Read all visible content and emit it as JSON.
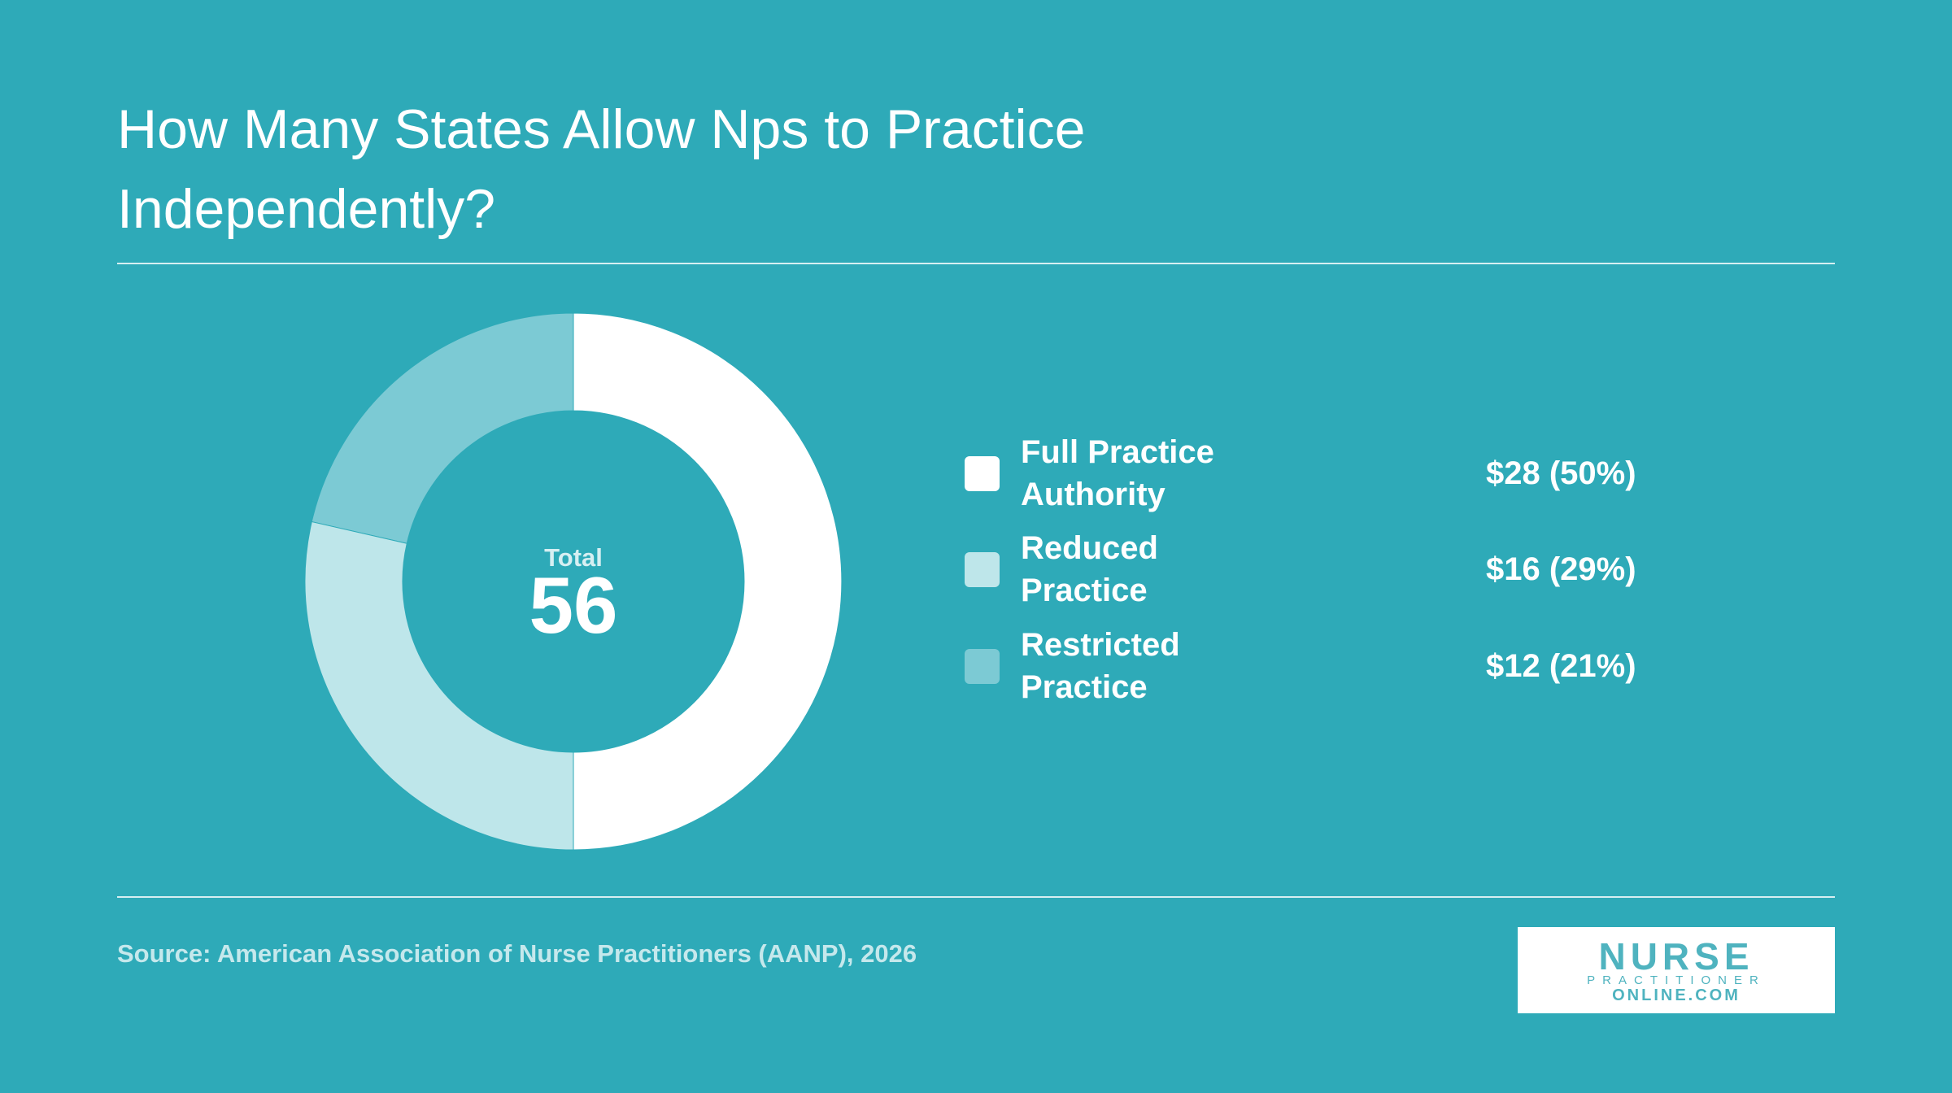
{
  "chart_data": {
    "type": "donut",
    "title": "How Many States Allow Nps to Practice Independently?",
    "categories": [
      "Full Practice Authority",
      "Reduced Practice",
      "Restricted Practice"
    ],
    "values": [
      28,
      16,
      12
    ],
    "value_labels": [
      "$28 (50%)",
      "$16 (29%)",
      "$12 (21%)"
    ],
    "colors": [
      "#ffffff",
      "#bee6ea",
      "#7ccad4"
    ],
    "center_label": "Total",
    "total": 56,
    "source": "Source: American Association of Nurse Practitioners (AANP), 2026"
  },
  "logo": {
    "line1": "NURSE",
    "line2": "PRACTITIONER",
    "line3": "ONLINE.COM"
  }
}
